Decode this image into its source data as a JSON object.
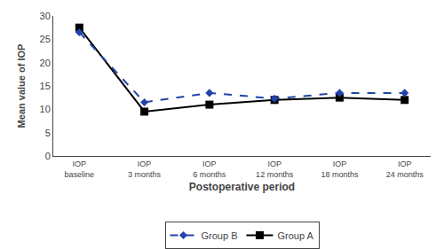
{
  "chart_data": {
    "type": "line",
    "categories": [
      "IOP\nbaseline",
      "IOP\n3 months",
      "IOP\n6 months",
      "IOP\n12 months",
      "IOP\n18 months",
      "IOP\n24 months"
    ],
    "series": [
      {
        "name": "Group A",
        "color": "#000000",
        "values": [
          27.5,
          9.5,
          11.0,
          12.0,
          12.5,
          12.0
        ],
        "marker": "square",
        "line_style": "solid"
      },
      {
        "name": "Group B",
        "color": "#2244aa",
        "values": [
          26.5,
          11.5,
          13.5,
          12.3,
          13.5,
          13.5
        ],
        "marker": "diamond",
        "line_style": "dash"
      }
    ],
    "xlabel": "Postoperative period",
    "ylabel": "Mean value of IOP",
    "ylim": [
      0,
      30
    ],
    "yticks": [
      0,
      5,
      10,
      15,
      20,
      25,
      30
    ],
    "grid": false,
    "legend": "bottom"
  }
}
